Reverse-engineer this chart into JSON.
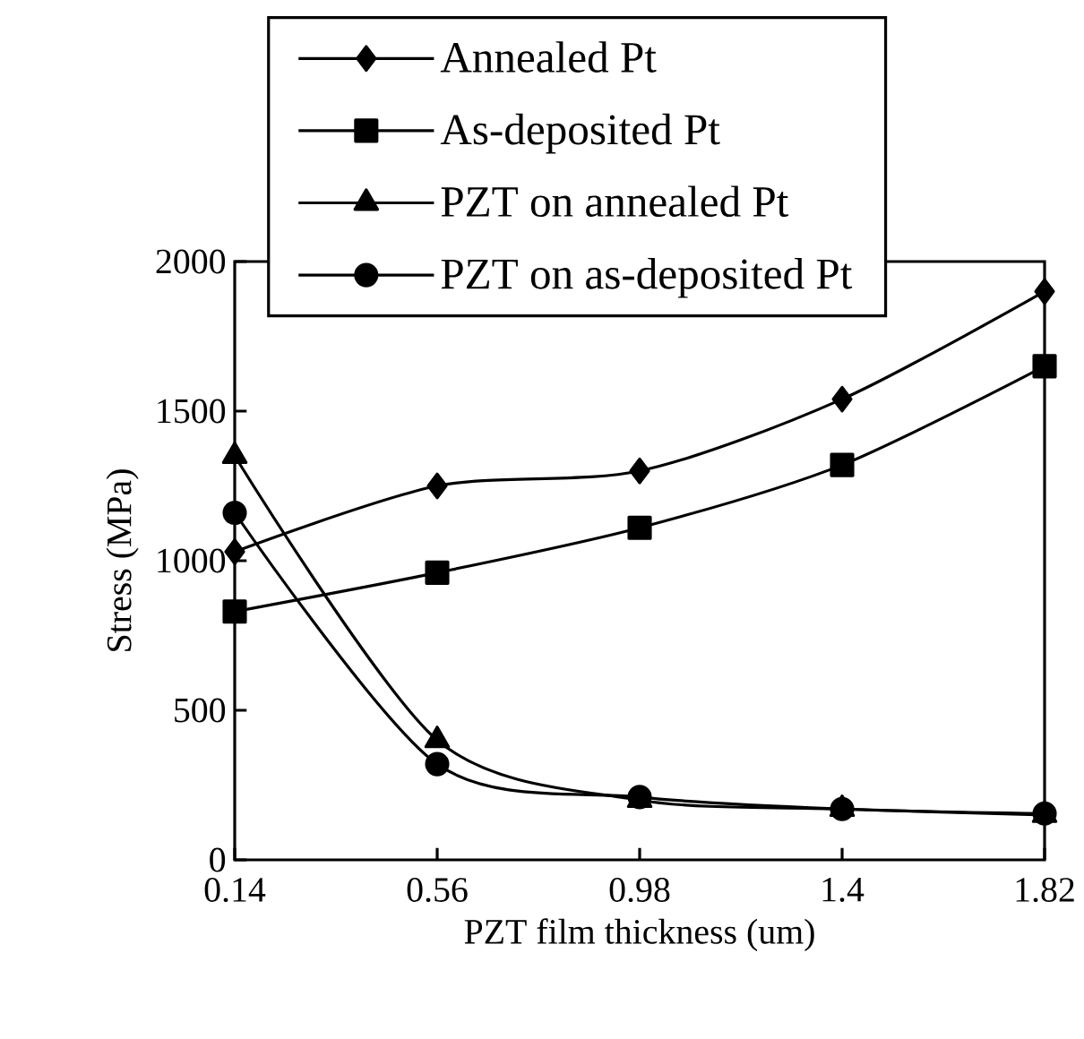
{
  "chart_data": {
    "type": "line",
    "xlabel": "PZT film thickness (um)",
    "ylabel": "Stress (MPa)",
    "x": [
      0.14,
      0.56,
      0.98,
      1.4,
      1.82
    ],
    "xlim": [
      0.14,
      1.82
    ],
    "xticks": [
      0.14,
      0.56,
      0.98,
      1.4,
      1.82
    ],
    "ylim": [
      0,
      2000
    ],
    "yticks": [
      0,
      500,
      1000,
      1500,
      2000
    ],
    "legend": "top",
    "grid": false,
    "series": [
      {
        "name": "Annealed Pt",
        "color": "#000000",
        "marker": "diamond",
        "values": [
          1030,
          1250,
          1300,
          1540,
          1900
        ]
      },
      {
        "name": "As-deposited Pt",
        "color": "#000000",
        "marker": "square",
        "values": [
          830,
          960,
          1110,
          1320,
          1650
        ]
      },
      {
        "name": "PZT on annealed Pt",
        "color": "#000000",
        "marker": "triangle",
        "values": [
          1350,
          400,
          200,
          170,
          150
        ]
      },
      {
        "name": "PZT on as-deposited Pt",
        "color": "#000000",
        "marker": "circle",
        "values": [
          1160,
          320,
          210,
          170,
          155
        ]
      }
    ]
  }
}
